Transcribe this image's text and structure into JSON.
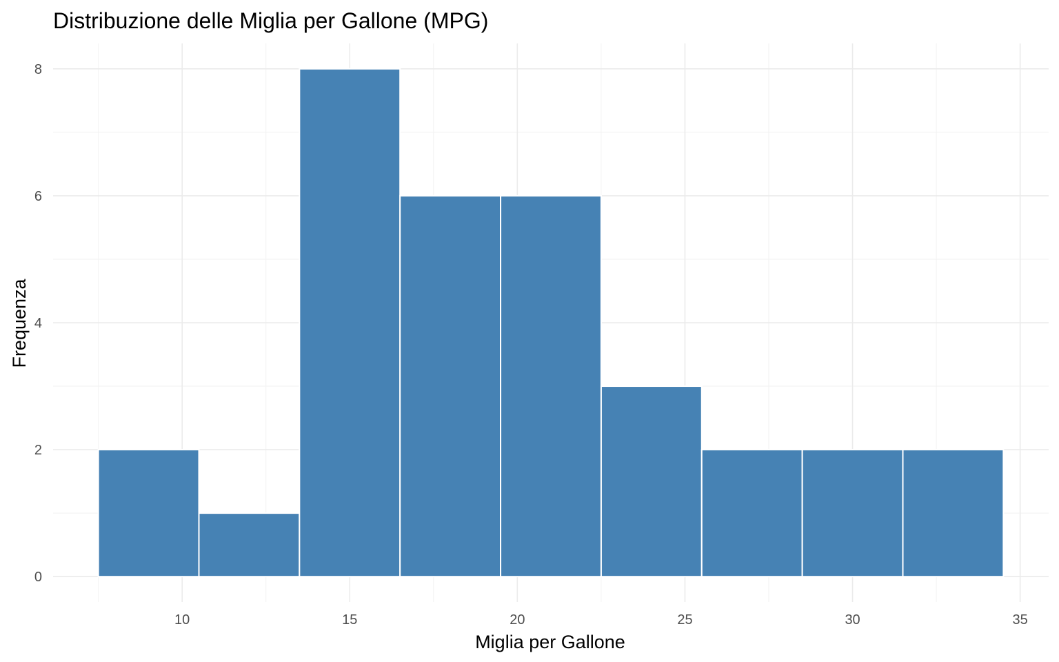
{
  "chart_data": {
    "type": "bar",
    "title": "Distribuzione delle Miglia per Gallone (MPG)",
    "xlabel": "Miglia per Gallone",
    "ylabel": "Frequenza",
    "bar_color": "#4682b4",
    "bar_outline_color": "#ffffff",
    "grid": true,
    "xlim": [
      6.15,
      35.85
    ],
    "ylim": [
      -0.4,
      8.4
    ],
    "x_ticks": [
      10,
      15,
      20,
      25,
      30,
      35
    ],
    "y_ticks": [
      0,
      2,
      4,
      6,
      8
    ],
    "bins": [
      {
        "from": 7.5,
        "to": 10.5,
        "count": 2
      },
      {
        "from": 10.5,
        "to": 13.5,
        "count": 1
      },
      {
        "from": 13.5,
        "to": 16.5,
        "count": 8
      },
      {
        "from": 16.5,
        "to": 19.5,
        "count": 6
      },
      {
        "from": 19.5,
        "to": 22.5,
        "count": 6
      },
      {
        "from": 22.5,
        "to": 25.5,
        "count": 3
      },
      {
        "from": 25.5,
        "to": 28.5,
        "count": 2
      },
      {
        "from": 28.5,
        "to": 31.5,
        "count": 2
      },
      {
        "from": 31.5,
        "to": 34.5,
        "count": 2
      }
    ]
  }
}
